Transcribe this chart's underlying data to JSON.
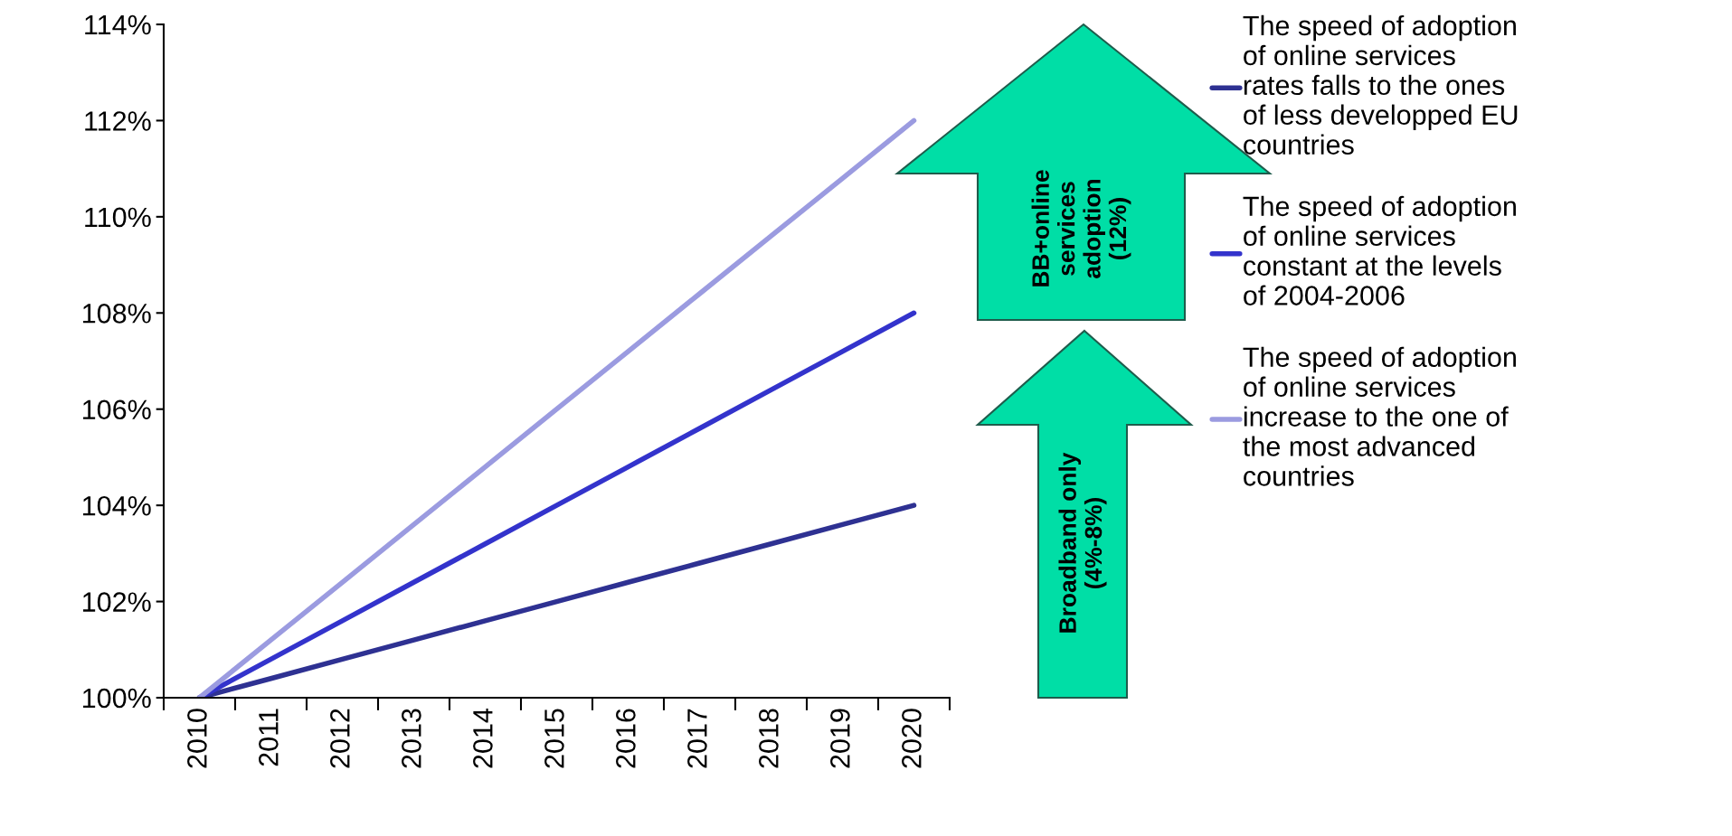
{
  "chart_data": {
    "type": "line",
    "categories": [
      "2010",
      "2011",
      "2012",
      "2013",
      "2014",
      "2015",
      "2016",
      "2017",
      "2018",
      "2019",
      "2020"
    ],
    "series": [
      {
        "name": "The speed of adoption of online services rates falls to the ones of less developped EU countries",
        "color": "#2e3192",
        "values": [
          100,
          100.4,
          100.8,
          101.2,
          101.6,
          102,
          102.4,
          102.8,
          103.2,
          103.6,
          104
        ]
      },
      {
        "name": "The speed of adoption of online services constant at the levels of 2004-2006",
        "color": "#3333cc",
        "values": [
          100,
          100.8,
          101.6,
          102.4,
          103.2,
          104,
          104.8,
          105.6,
          106.4,
          107.2,
          108
        ]
      },
      {
        "name": "The speed of adoption of online services increase to the one of the most advanced countries",
        "color": "#9b9be0",
        "values": [
          100,
          101.2,
          102.4,
          103.6,
          104.8,
          106,
          107.2,
          108.4,
          109.6,
          110.8,
          112
        ]
      }
    ],
    "ylim": [
      100,
      114
    ],
    "yticks": [
      {
        "value": 100,
        "label": "100%"
      },
      {
        "value": 102,
        "label": "102%"
      },
      {
        "value": 104,
        "label": "104%"
      },
      {
        "value": 106,
        "label": "106%"
      },
      {
        "value": 108,
        "label": "108%"
      },
      {
        "value": 110,
        "label": "110%"
      },
      {
        "value": 112,
        "label": "112%"
      },
      {
        "value": 114,
        "label": "114%"
      }
    ],
    "annotations": [
      "BB+online services adoption (12%)",
      "Broadband only (4%-8%)"
    ],
    "legend": "right",
    "grid": false,
    "marker": "none",
    "line_style": "solid"
  }
}
